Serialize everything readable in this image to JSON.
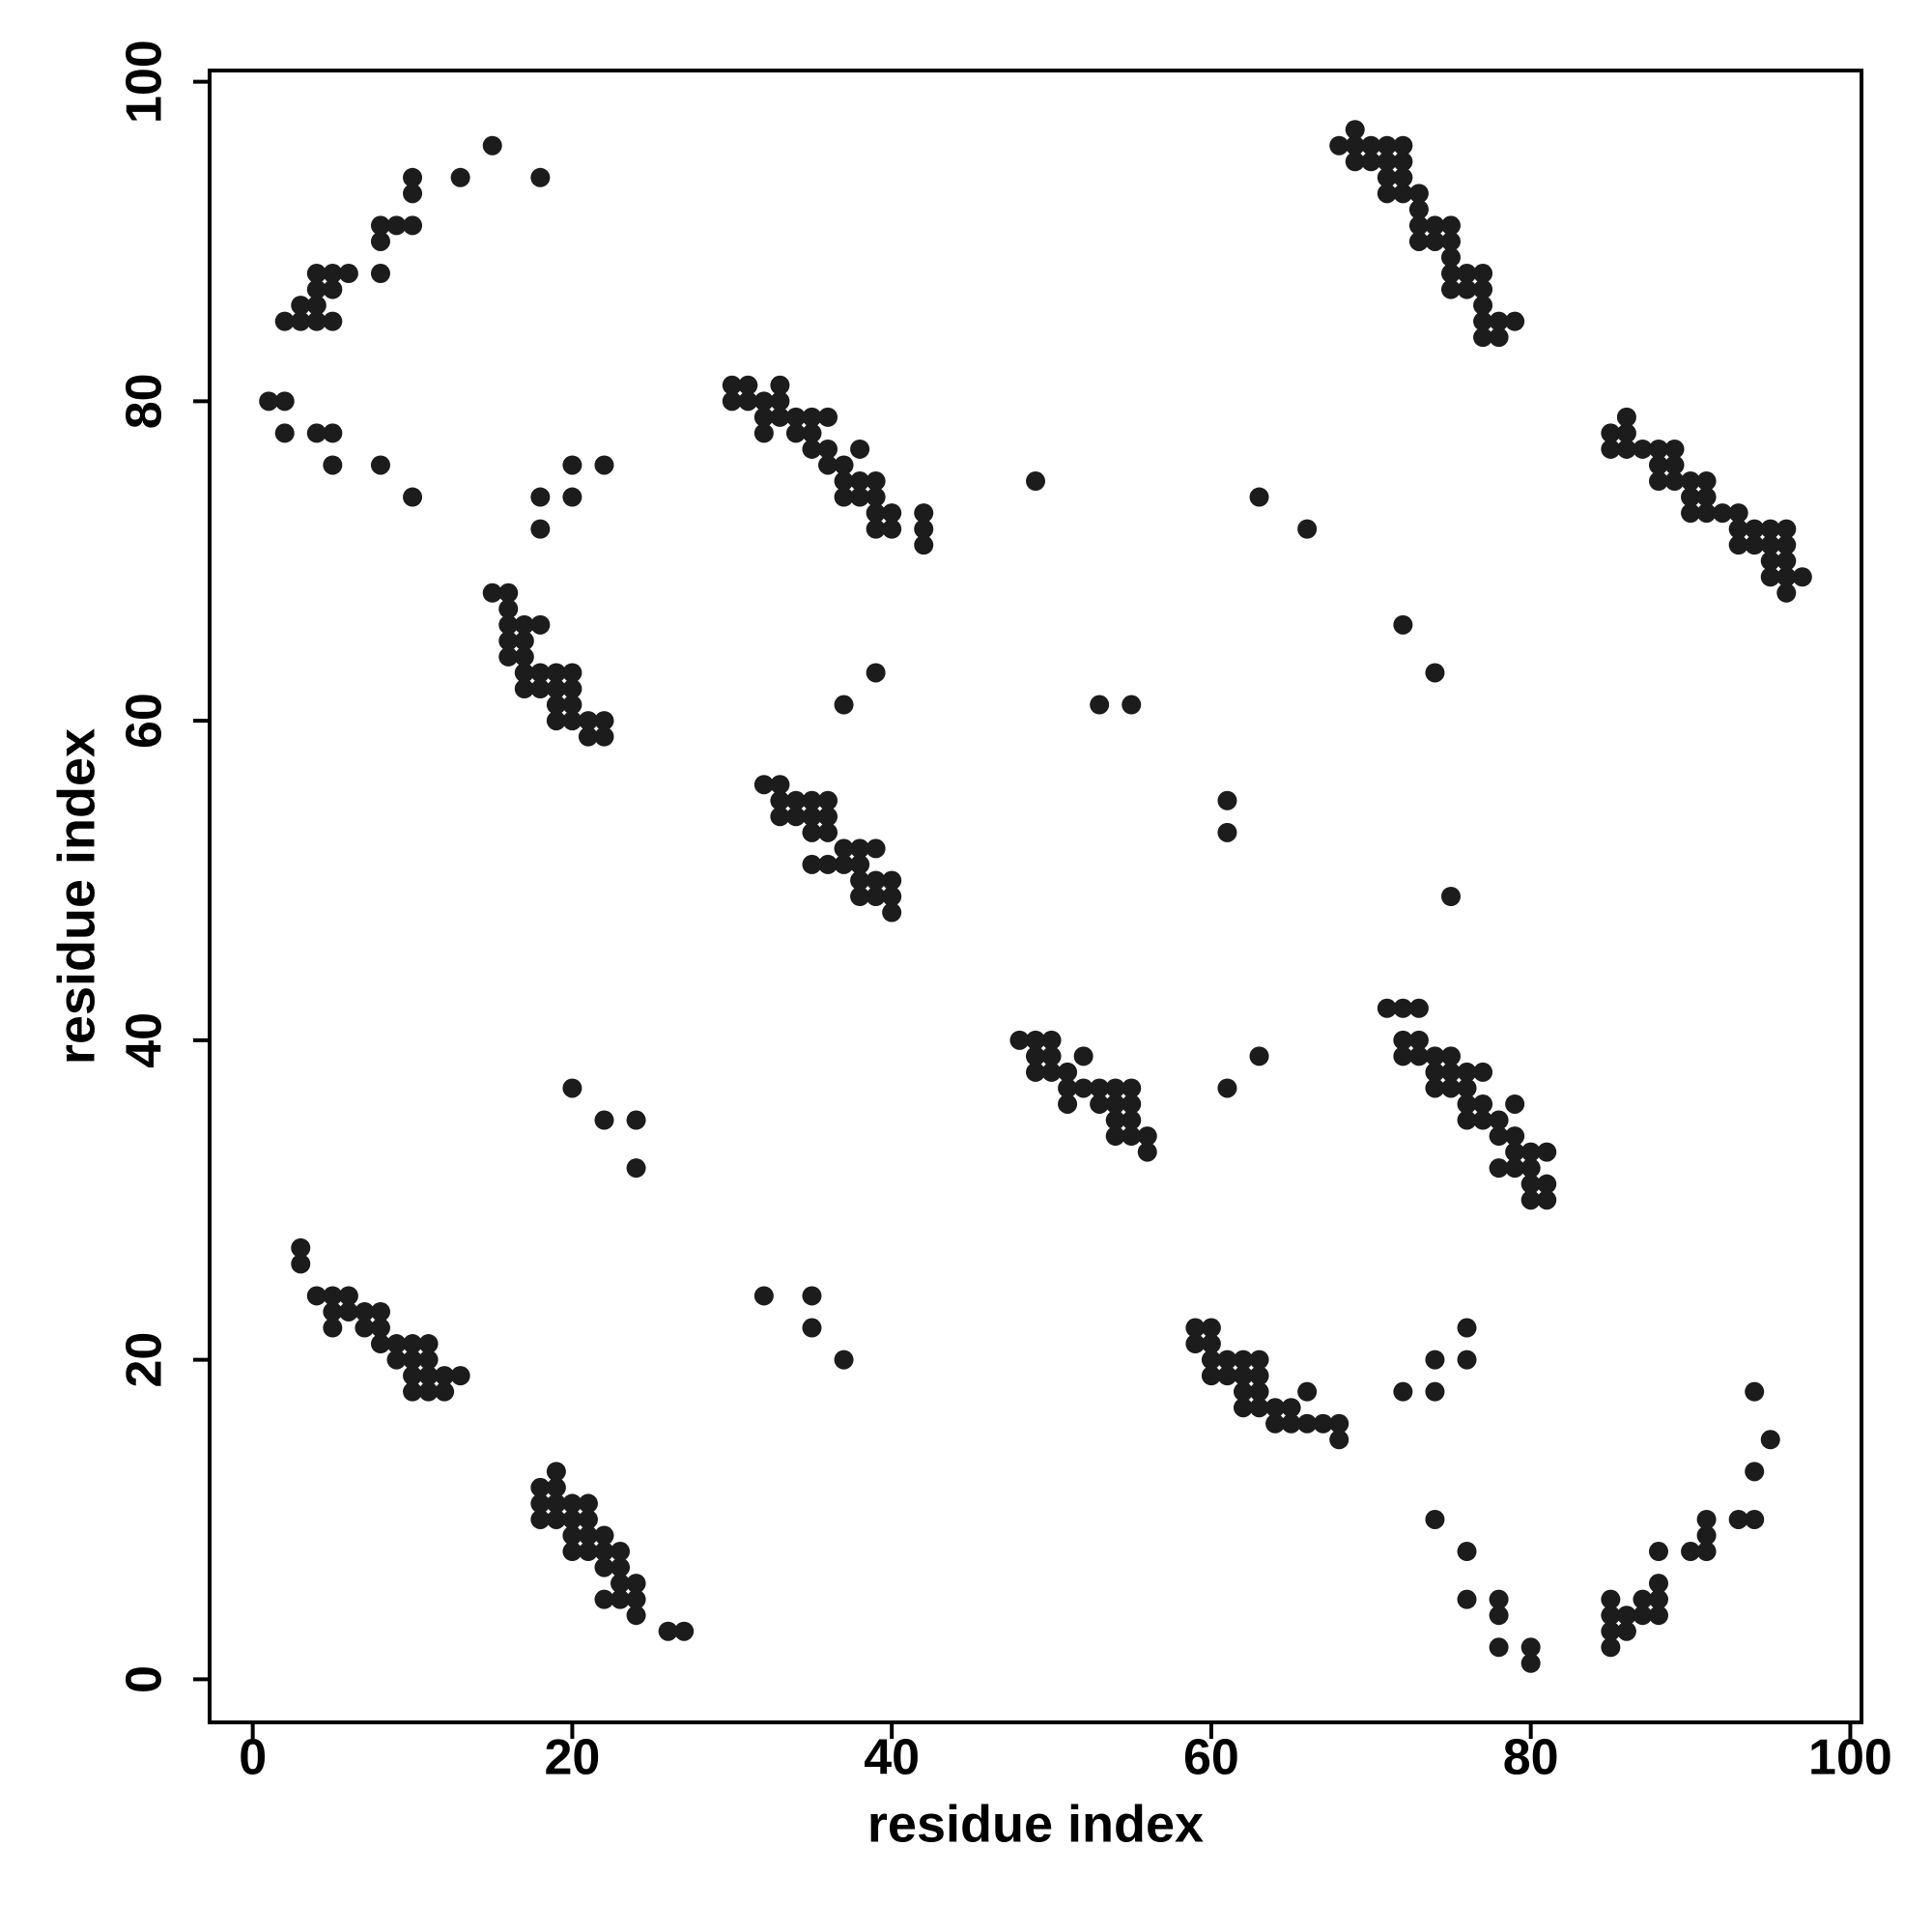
{
  "chart_data": {
    "type": "scatter",
    "xlabel": "residue index",
    "ylabel": "residue index",
    "xlim": [
      -2.7,
      100.7
    ],
    "ylim": [
      -2.7,
      100.7
    ],
    "xticks": [
      0,
      20,
      40,
      60,
      80,
      100
    ],
    "yticks": [
      0,
      20,
      40,
      60,
      80,
      100
    ],
    "grid": false,
    "x": [
      2,
      3,
      4,
      5,
      3,
      4,
      4,
      5,
      4,
      5,
      6,
      8,
      8,
      8,
      9,
      10,
      10,
      10,
      13,
      15,
      18,
      1,
      2,
      2,
      4,
      5,
      5,
      8,
      10,
      18,
      18,
      20,
      20,
      22,
      68,
      69,
      69,
      70,
      71,
      72,
      69,
      70,
      71,
      72,
      71,
      72,
      71,
      72,
      73,
      73,
      73,
      74,
      75,
      73,
      74,
      75,
      75,
      75,
      76,
      77,
      75,
      76,
      77,
      77,
      77,
      78,
      79,
      77,
      78,
      30,
      31,
      33,
      30,
      31,
      32,
      33,
      32,
      33,
      34,
      35,
      36,
      32,
      34,
      35,
      35,
      36,
      38,
      36,
      37,
      37,
      38,
      39,
      37,
      38,
      39,
      39,
      40,
      42,
      39,
      40,
      42,
      42,
      85,
      86,
      86,
      85,
      86,
      87,
      88,
      89,
      88,
      89,
      88,
      89,
      90,
      91,
      90,
      91,
      90,
      91,
      92,
      93,
      93,
      94,
      95,
      96,
      93,
      94,
      95,
      96,
      95,
      96,
      95,
      96,
      97,
      96,
      49,
      63,
      66,
      72,
      74,
      37,
      39,
      53,
      55,
      61,
      61,
      75,
      15,
      16,
      16,
      16,
      17,
      18,
      16,
      17,
      16,
      17,
      17,
      18,
      19,
      20,
      17,
      18,
      19,
      20,
      19,
      20,
      19,
      20,
      21,
      22,
      21,
      22,
      32,
      33,
      33,
      34,
      35,
      36,
      33,
      34,
      35,
      36,
      35,
      36,
      37,
      38,
      39,
      35,
      36,
      37,
      38,
      38,
      39,
      40,
      38,
      39,
      40,
      40,
      48,
      49,
      50,
      49,
      50,
      52,
      49,
      50,
      51,
      51,
      52,
      53,
      54,
      55,
      51,
      53,
      54,
      55,
      54,
      55,
      54,
      55,
      56,
      56,
      71,
      72,
      73,
      72,
      73,
      72,
      73,
      74,
      75,
      74,
      75,
      76,
      77,
      74,
      75,
      76,
      76,
      77,
      79,
      76,
      77,
      78,
      78,
      79,
      79,
      80,
      81,
      78,
      79,
      80,
      80,
      81,
      80,
      81,
      20,
      22,
      24,
      24,
      61,
      63,
      3,
      3,
      4,
      5,
      6,
      5,
      6,
      7,
      8,
      5,
      7,
      8,
      8,
      9,
      10,
      11,
      9,
      10,
      11,
      10,
      11,
      12,
      13,
      10,
      11,
      12,
      32,
      35,
      35,
      37,
      59,
      60,
      59,
      60,
      60,
      61,
      62,
      63,
      60,
      61,
      62,
      63,
      62,
      63,
      66,
      62,
      63,
      64,
      65,
      64,
      65,
      66,
      67,
      68,
      68,
      72,
      74,
      74,
      76,
      76,
      74,
      76,
      76,
      78,
      78,
      78,
      80,
      80,
      19,
      18,
      19,
      18,
      19,
      20,
      21,
      18,
      19,
      20,
      21,
      20,
      21,
      22,
      20,
      21,
      22,
      23,
      22,
      23,
      23,
      24,
      22,
      23,
      24,
      24,
      26,
      27,
      85,
      85,
      86,
      87,
      88,
      85,
      86,
      85,
      87,
      88,
      88,
      88,
      90,
      91,
      91,
      91,
      93,
      94,
      94,
      95,
      94
    ],
    "series": [
      {
        "color": "#1c1c1c",
        "values": [
          85,
          85,
          85,
          85,
          86,
          86,
          87,
          87,
          88,
          88,
          88,
          88,
          90,
          91,
          91,
          91,
          93,
          94,
          94,
          96,
          94,
          80,
          80,
          78,
          78,
          78,
          76,
          76,
          74,
          74,
          72,
          76,
          74,
          76,
          96,
          97,
          96,
          96,
          96,
          96,
          95,
          95,
          95,
          95,
          94,
          94,
          93,
          93,
          93,
          92,
          91,
          91,
          91,
          90,
          90,
          90,
          89,
          88,
          88,
          88,
          87,
          87,
          87,
          86,
          85,
          85,
          85,
          84,
          84,
          81,
          81,
          81,
          80,
          80,
          80,
          80,
          79,
          79,
          79,
          79,
          79,
          78,
          78,
          78,
          77,
          77,
          77,
          76,
          76,
          75,
          75,
          75,
          74,
          74,
          74,
          73,
          73,
          73,
          72,
          72,
          72,
          71,
          78,
          78,
          79,
          77,
          77,
          77,
          77,
          77,
          76,
          76,
          75,
          75,
          75,
          75,
          74,
          74,
          73,
          73,
          73,
          73,
          72,
          72,
          72,
          72,
          71,
          71,
          71,
          71,
          70,
          70,
          69,
          69,
          69,
          68,
          75,
          74,
          72,
          66,
          63,
          61,
          63,
          61,
          61,
          55,
          53,
          49,
          68,
          68,
          67,
          66,
          66,
          66,
          65,
          65,
          64,
          64,
          63,
          63,
          63,
          63,
          62,
          62,
          62,
          62,
          61,
          61,
          60,
          60,
          60,
          60,
          59,
          59,
          56,
          56,
          55,
          55,
          55,
          55,
          54,
          54,
          54,
          54,
          53,
          53,
          52,
          52,
          52,
          51,
          51,
          51,
          51,
          50,
          50,
          50,
          49,
          49,
          49,
          48,
          40,
          40,
          40,
          39,
          39,
          39,
          38,
          38,
          38,
          37,
          37,
          37,
          37,
          37,
          36,
          36,
          36,
          36,
          35,
          35,
          34,
          34,
          34,
          33,
          42,
          42,
          42,
          40,
          40,
          39,
          39,
          39,
          39,
          38,
          38,
          38,
          38,
          37,
          37,
          37,
          36,
          36,
          36,
          35,
          35,
          35,
          34,
          34,
          33,
          33,
          33,
          32,
          32,
          32,
          31,
          31,
          30,
          30,
          37,
          35,
          35,
          32,
          37,
          39,
          27,
          26,
          24,
          24,
          24,
          23,
          23,
          23,
          23,
          22,
          22,
          22,
          21,
          21,
          21,
          21,
          20,
          20,
          20,
          19,
          19,
          19,
          19,
          18,
          18,
          18,
          24,
          24,
          22,
          20,
          22,
          22,
          21,
          21,
          20,
          20,
          20,
          20,
          19,
          19,
          19,
          19,
          18,
          18,
          18,
          17,
          17,
          17,
          17,
          16,
          16,
          16,
          16,
          16,
          15,
          18,
          18,
          20,
          22,
          20,
          10,
          8,
          5,
          5,
          4,
          2,
          2,
          1,
          13,
          12,
          12,
          11,
          11,
          11,
          11,
          10,
          10,
          10,
          10,
          9,
          9,
          9,
          8,
          8,
          8,
          8,
          7,
          7,
          6,
          6,
          5,
          5,
          5,
          4,
          3,
          3,
          5,
          4,
          4,
          4,
          4,
          3,
          3,
          2,
          5,
          5,
          6,
          8,
          8,
          8,
          9,
          10,
          10,
          10,
          13,
          15,
          18
        ]
      }
    ]
  }
}
